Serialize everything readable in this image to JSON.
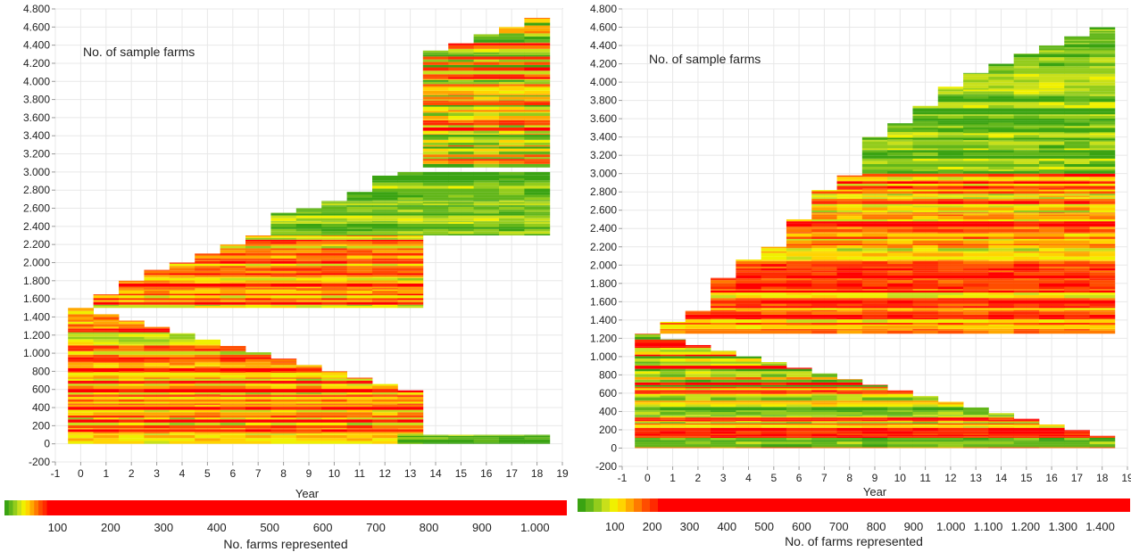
{
  "chart_data": [
    {
      "type": "heatmap",
      "title": "No. of sample farms",
      "xlabel": "Year",
      "ylabel": "",
      "xlim": [
        -1,
        19
      ],
      "ylim": [
        -200,
        4800
      ],
      "x_ticks": [
        -1,
        0,
        1,
        2,
        3,
        4,
        5,
        6,
        7,
        8,
        9,
        10,
        11,
        12,
        13,
        14,
        15,
        16,
        17,
        18,
        19
      ],
      "y_ticks": [
        -200,
        0,
        200,
        400,
        600,
        800,
        1000,
        1200,
        1400,
        1600,
        1800,
        2000,
        2200,
        2400,
        2600,
        2800,
        3000,
        3200,
        3400,
        3600,
        3800,
        4000,
        4200,
        4400,
        4600,
        4800
      ],
      "y_tick_labels": [
        "-200",
        "0",
        "200",
        "400",
        "600",
        "800",
        "1.000",
        "1.200",
        "1.400",
        "1.600",
        "1.800",
        "2.000",
        "2.200",
        "2.400",
        "2.600",
        "2.800",
        "3.000",
        "3.200",
        "3.400",
        "3.600",
        "3.800",
        "4.000",
        "4.200",
        "4.400",
        "4.600",
        "4.800"
      ],
      "grid": true,
      "years": [
        0,
        1,
        2,
        3,
        4,
        5,
        6,
        7,
        8,
        9,
        10,
        11,
        12,
        13,
        14,
        15,
        16,
        17,
        18
      ],
      "column_max_farms": [
        1500,
        1650,
        1800,
        1920,
        2000,
        2100,
        2200,
        2300,
        2550,
        2600,
        2680,
        2780,
        2960,
        3080,
        4340,
        4420,
        4520,
        4600,
        4700
      ],
      "blocks": [
        {
          "from_year": 0,
          "to_year": 13,
          "y_from": 0,
          "y_to": 1500,
          "decline_per_year": 70,
          "tone": "red-yellow"
        },
        {
          "from_year": 1,
          "to_year": 13,
          "y_from": 1500,
          "y_to": 2300,
          "decline_per_year": 0,
          "tone": "yellow-red"
        },
        {
          "from_year": 8,
          "to_year": 18,
          "y_from": 2300,
          "y_to": 3000,
          "decline_per_year": 0,
          "tone": "green"
        },
        {
          "from_year": 14,
          "to_year": 18,
          "y_from": 3050,
          "y_to": 4700,
          "decline_per_year": 0,
          "tone": "mixed"
        },
        {
          "from_year": 13,
          "to_year": 18,
          "y_from": 0,
          "y_to": 100,
          "decline_per_year": 0,
          "tone": "green"
        }
      ],
      "colorbar": {
        "label": "No. farms represented",
        "min": 0,
        "max": 1060,
        "ticks": [
          100,
          200,
          300,
          400,
          500,
          600,
          700,
          800,
          900,
          1000
        ],
        "tick_labels": [
          "100",
          "200",
          "300",
          "400",
          "500",
          "600",
          "700",
          "800",
          "900",
          "1.000"
        ]
      }
    },
    {
      "type": "heatmap",
      "title": "No. of sample farms",
      "xlabel": "Year",
      "ylabel": "",
      "xlim": [
        -1,
        19
      ],
      "ylim": [
        -200,
        4800
      ],
      "x_ticks": [
        -1,
        0,
        1,
        2,
        3,
        4,
        5,
        6,
        7,
        8,
        9,
        10,
        11,
        12,
        13,
        14,
        15,
        16,
        17,
        18,
        19
      ],
      "y_ticks": [
        -200,
        0,
        200,
        400,
        600,
        800,
        1000,
        1200,
        1400,
        1600,
        1800,
        2000,
        2200,
        2400,
        2600,
        2800,
        3000,
        3200,
        3400,
        3600,
        3800,
        4000,
        4200,
        4400,
        4600,
        4800
      ],
      "y_tick_labels": [
        "-200",
        "0",
        "200",
        "400",
        "600",
        "800",
        "1.000",
        "1.200",
        "1.400",
        "1.600",
        "1.800",
        "2.000",
        "2.200",
        "2.400",
        "2.600",
        "2.800",
        "3.000",
        "3.200",
        "3.400",
        "3.600",
        "3.800",
        "4.000",
        "4.200",
        "4.400",
        "4.600",
        "4.800"
      ],
      "grid": true,
      "years": [
        0,
        1,
        2,
        3,
        4,
        5,
        6,
        7,
        8,
        9,
        10,
        11,
        12,
        13,
        14,
        15,
        16,
        17,
        18
      ],
      "column_max_farms": [
        1250,
        1380,
        1500,
        1860,
        2060,
        2200,
        2500,
        2820,
        2980,
        3400,
        3550,
        3740,
        3950,
        4100,
        4200,
        4310,
        4400,
        4500,
        4600
      ],
      "blocks": [
        {
          "from_year": 0,
          "to_year": 18,
          "y_from": 0,
          "y_to": 1250,
          "decline_per_year": 62,
          "tone": "mixed"
        },
        {
          "from_year": 1,
          "to_year": 18,
          "y_from": 1250,
          "y_to": 2500,
          "decline_per_year": 0,
          "tone": "yellow-red"
        },
        {
          "from_year": 6,
          "to_year": 18,
          "y_from": 2500,
          "y_to": 3000,
          "decline_per_year": 0,
          "tone": "yellow-red"
        },
        {
          "from_year": 9,
          "to_year": 18,
          "y_from": 3000,
          "y_to": 4600,
          "decline_per_year": 0,
          "tone": "green"
        }
      ],
      "colorbar": {
        "label": "No. of farms represented",
        "min": 0,
        "max": 1480,
        "ticks": [
          100,
          200,
          300,
          400,
          500,
          600,
          700,
          800,
          900,
          1000,
          1100,
          1200,
          1300,
          1400
        ],
        "tick_labels": [
          "100",
          "200",
          "300",
          "400",
          "500",
          "600",
          "700",
          "800",
          "900",
          "1.000",
          "1.100",
          "1.200",
          "1.300",
          "1.400"
        ]
      }
    }
  ],
  "colors": {
    "scale": [
      "#3aa312",
      "#62b61a",
      "#93cc1c",
      "#c8e01a",
      "#f0f000",
      "#ffd400",
      "#ffa800",
      "#ff7a00",
      "#ff4d00",
      "#ff2a00",
      "#ff0000"
    ],
    "colorbar_max": "#ff0000",
    "grid": "#e8e8e8",
    "axis": "#999999"
  }
}
